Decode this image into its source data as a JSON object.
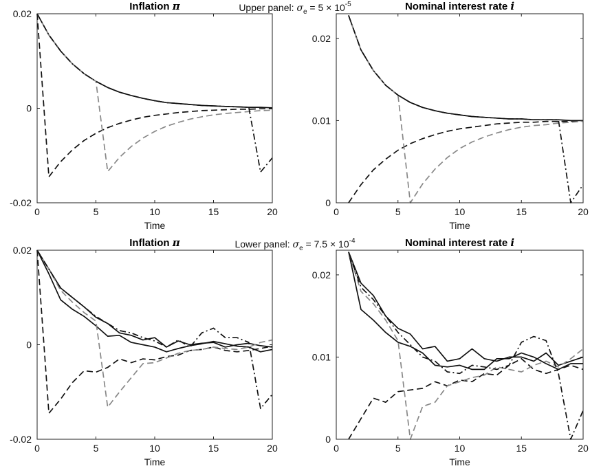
{
  "panel_labels": [
    {
      "prefix": "Upper panel: ",
      "sigma": "σ",
      "sub": "e",
      "eq": " = 5 × 10",
      "sup": "-5"
    },
    {
      "prefix": "Lower panel: ",
      "sigma": "σ",
      "sub": "e",
      "eq": " = 7.5 × 10",
      "sup": "-4"
    }
  ],
  "chart_data": [
    {
      "type": "line",
      "title": "Inflation π",
      "xlabel": "Time",
      "ylabel": "",
      "xlim": [
        0,
        20
      ],
      "ylim": [
        -0.02,
        0.02
      ],
      "xticks": [
        "0",
        "5",
        "10",
        "15",
        "20"
      ],
      "yticks": [
        {
          "v": 0.02,
          "label": "0.02"
        },
        {
          "v": 0,
          "label": "0"
        },
        {
          "v": -0.02,
          "label": "-0.02"
        }
      ],
      "series": [
        {
          "color": "#111111",
          "dash": "",
          "x": [
            0,
            1,
            2,
            3,
            4,
            5,
            6,
            7,
            8,
            9,
            10,
            11,
            12,
            13,
            14,
            15,
            16,
            17,
            18,
            19,
            20
          ],
          "values": [
            0.02,
            0.0155,
            0.0121,
            0.0094,
            0.0073,
            0.0057,
            0.0044,
            0.0034,
            0.0027,
            0.0021,
            0.0016,
            0.0012,
            0.001,
            0.0008,
            0.0006,
            0.0005,
            0.0004,
            0.0003,
            0.0002,
            0.0002,
            0.0001
          ]
        },
        {
          "color": "#111111",
          "dash": "9,5",
          "x": [
            0,
            1,
            2,
            3,
            4,
            5,
            6,
            7,
            8,
            9,
            10,
            11,
            12,
            13,
            14,
            15,
            16,
            17,
            18,
            19,
            20
          ],
          "values": [
            0.02,
            -0.0145,
            -0.0113,
            -0.0088,
            -0.0068,
            -0.0053,
            -0.0041,
            -0.0032,
            -0.0025,
            -0.0019,
            -0.0015,
            -0.0012,
            -0.0009,
            -0.0007,
            -0.0005,
            -0.0004,
            -0.0003,
            -0.0002,
            -0.0002,
            -0.0001,
            -0.0001
          ]
        },
        {
          "color": "#888888",
          "dash": "9,5",
          "x": [
            0,
            1,
            2,
            3,
            4,
            5,
            6,
            7,
            8,
            9,
            10,
            11,
            12,
            13,
            14,
            15,
            16,
            17,
            18,
            19,
            20
          ],
          "values": [
            0.02,
            0.0155,
            0.0121,
            0.0094,
            0.0073,
            0.0057,
            -0.0134,
            -0.0104,
            -0.0081,
            -0.0063,
            -0.0049,
            -0.0038,
            -0.003,
            -0.0023,
            -0.0018,
            -0.0014,
            -0.0011,
            -0.0009,
            -0.0007,
            -0.0005,
            -0.0004
          ]
        },
        {
          "color": "#111111",
          "dash": "9,4,2,4",
          "x": [
            0,
            1,
            2,
            3,
            4,
            5,
            6,
            7,
            8,
            9,
            10,
            11,
            12,
            13,
            14,
            15,
            16,
            17,
            18,
            19,
            20
          ],
          "values": [
            0.02,
            0.0155,
            0.0121,
            0.0094,
            0.0073,
            0.0057,
            0.0044,
            0.0034,
            0.0027,
            0.0021,
            0.0016,
            0.0012,
            0.001,
            0.0008,
            0.0006,
            0.0005,
            0.0004,
            0.0003,
            0.0002,
            -0.0135,
            -0.0105
          ]
        }
      ]
    },
    {
      "type": "line",
      "title": "Nominal interest rate i",
      "xlabel": "Time",
      "ylabel": "",
      "xlim": [
        0,
        20
      ],
      "ylim": [
        0,
        0.023
      ],
      "xticks": [
        "0",
        "5",
        "10",
        "15",
        "20"
      ],
      "yticks": [
        {
          "v": 0.02,
          "label": "0.02"
        },
        {
          "v": 0.01,
          "label": "0.01"
        },
        {
          "v": 0,
          "label": "0"
        }
      ],
      "series": [
        {
          "color": "#111111",
          "dash": "",
          "x": [
            1,
            2,
            3,
            4,
            5,
            6,
            7,
            8,
            9,
            10,
            11,
            12,
            13,
            14,
            15,
            16,
            17,
            18,
            19,
            20
          ],
          "values": [
            0.0228,
            0.0186,
            0.0161,
            0.0143,
            0.0131,
            0.0122,
            0.0116,
            0.0112,
            0.0109,
            0.0107,
            0.0105,
            0.0104,
            0.0103,
            0.0102,
            0.0102,
            0.0101,
            0.0101,
            0.0101,
            0.01,
            0.01
          ]
        },
        {
          "color": "#111111",
          "dash": "9,5",
          "x": [
            1,
            2,
            3,
            4,
            5,
            6,
            7,
            8,
            9,
            10,
            11,
            12,
            13,
            14,
            15,
            16,
            17,
            18,
            19,
            20
          ],
          "values": [
            0.0,
            0.0022,
            0.004,
            0.0053,
            0.0064,
            0.0072,
            0.0078,
            0.0083,
            0.0087,
            0.009,
            0.0092,
            0.0094,
            0.0096,
            0.0097,
            0.0098,
            0.0098,
            0.0099,
            0.0099,
            0.0099,
            0.01
          ]
        },
        {
          "color": "#888888",
          "dash": "9,5",
          "x": [
            1,
            2,
            3,
            4,
            5,
            6,
            7,
            8,
            9,
            10,
            11,
            12,
            13,
            14,
            15,
            16,
            17,
            18,
            19,
            20
          ],
          "values": [
            0.0228,
            0.0186,
            0.0161,
            0.0143,
            0.0131,
            0.0,
            0.0023,
            0.0041,
            0.0055,
            0.0066,
            0.0074,
            0.008,
            0.0085,
            0.0089,
            0.0092,
            0.0094,
            0.0095,
            0.0097,
            0.0098,
            0.0099
          ]
        },
        {
          "color": "#111111",
          "dash": "9,4,2,4",
          "x": [
            1,
            2,
            3,
            4,
            5,
            6,
            7,
            8,
            9,
            10,
            11,
            12,
            13,
            14,
            15,
            16,
            17,
            18,
            19,
            20
          ],
          "values": [
            0.0228,
            0.0186,
            0.0161,
            0.0143,
            0.0131,
            0.0122,
            0.0116,
            0.0112,
            0.0109,
            0.0107,
            0.0105,
            0.0104,
            0.0103,
            0.0102,
            0.0102,
            0.0101,
            0.0101,
            0.0101,
            0.0,
            0.0022
          ]
        }
      ]
    },
    {
      "type": "line",
      "title": "Inflation π",
      "xlabel": "Time",
      "ylabel": "",
      "xlim": [
        0,
        20
      ],
      "ylim": [
        -0.02,
        0.02
      ],
      "xticks": [
        "0",
        "5",
        "10",
        "15",
        "20"
      ],
      "yticks": [
        {
          "v": 0.02,
          "label": "0.02"
        },
        {
          "v": 0,
          "label": "0"
        },
        {
          "v": -0.02,
          "label": "-0.02"
        }
      ],
      "series": [
        {
          "color": "#111111",
          "dash": "",
          "x": [
            0,
            1,
            2,
            3,
            4,
            5,
            6,
            7,
            8,
            9,
            10,
            11,
            12,
            13,
            14,
            15,
            16,
            17,
            18,
            19,
            20
          ],
          "values": [
            0.02,
            0.016,
            0.012,
            0.01,
            0.008,
            0.0058,
            0.0045,
            0.0025,
            0.002,
            0.001,
            0.0015,
            -0.0005,
            0.0008,
            0.0,
            0.0003,
            0.0005,
            -0.0005,
            0.0,
            0.0003,
            -0.0002,
            -0.0005
          ]
        },
        {
          "color": "#111111",
          "dash": "",
          "x": [
            0,
            1,
            2,
            3,
            4,
            5,
            6,
            7,
            8,
            9,
            10,
            11,
            12,
            13,
            14,
            15,
            16,
            17,
            18,
            19,
            20
          ],
          "values": [
            0.02,
            0.015,
            0.0095,
            0.0075,
            0.006,
            0.004,
            0.0018,
            0.002,
            0.0005,
            0.0,
            -0.0005,
            -0.0015,
            -0.0008,
            -0.0002,
            0.0002,
            0.0007,
            0.0002,
            -0.0003,
            -0.0005,
            -0.0015,
            -0.001
          ]
        },
        {
          "color": "#111111",
          "dash": "9,5",
          "x": [
            0,
            1,
            2,
            3,
            4,
            5,
            6,
            7,
            8,
            9,
            10,
            11,
            12,
            13,
            14,
            15,
            16,
            17,
            18,
            19,
            20
          ],
          "values": [
            0.02,
            -0.0145,
            -0.0115,
            -0.008,
            -0.0055,
            -0.0058,
            -0.0048,
            -0.003,
            -0.0038,
            -0.003,
            -0.0032,
            -0.0025,
            -0.0022,
            -0.0012,
            -0.001,
            -0.0005,
            -0.0012,
            -0.0015,
            -0.0012,
            -0.0008,
            -0.0003
          ]
        },
        {
          "color": "#888888",
          "dash": "9,5",
          "x": [
            0,
            1,
            2,
            3,
            4,
            5,
            6,
            7,
            8,
            9,
            10,
            11,
            12,
            13,
            14,
            15,
            16,
            17,
            18,
            19,
            20
          ],
          "values": [
            0.02,
            0.016,
            0.0115,
            0.009,
            0.0068,
            0.005,
            -0.0132,
            -0.01,
            -0.007,
            -0.004,
            -0.0038,
            -0.0028,
            -0.0018,
            -0.0012,
            -0.001,
            -0.0005,
            -0.0008,
            -0.001,
            -0.0005,
            0.0005,
            0.001
          ]
        },
        {
          "color": "#111111",
          "dash": "9,4,2,4",
          "x": [
            0,
            1,
            2,
            3,
            4,
            5,
            6,
            7,
            8,
            9,
            10,
            11,
            12,
            13,
            14,
            15,
            16,
            17,
            18,
            19,
            20
          ],
          "values": [
            0.02,
            0.016,
            0.012,
            0.01,
            0.008,
            0.006,
            0.0045,
            0.003,
            0.0025,
            0.0015,
            0.0008,
            -0.0005,
            0.001,
            -0.0005,
            0.0025,
            0.0035,
            0.0015,
            0.0015,
            0.0005,
            -0.0135,
            -0.0105
          ]
        }
      ]
    },
    {
      "type": "line",
      "title": "Nominal interest rate i",
      "xlabel": "Time",
      "ylabel": "",
      "xlim": [
        0,
        20
      ],
      "ylim": [
        0,
        0.023
      ],
      "xticks": [
        "0",
        "5",
        "10",
        "15",
        "20"
      ],
      "yticks": [
        {
          "v": 0.02,
          "label": "0.02"
        },
        {
          "v": 0.01,
          "label": "0.01"
        },
        {
          "v": 0,
          "label": "0"
        }
      ],
      "series": [
        {
          "color": "#111111",
          "dash": "",
          "x": [
            1,
            2,
            3,
            4,
            5,
            6,
            7,
            8,
            9,
            10,
            11,
            12,
            13,
            14,
            15,
            16,
            17,
            18,
            19,
            20
          ],
          "values": [
            0.0228,
            0.019,
            0.0175,
            0.015,
            0.0135,
            0.0128,
            0.011,
            0.0113,
            0.0095,
            0.0098,
            0.011,
            0.0098,
            0.0095,
            0.01,
            0.01,
            0.0095,
            0.0105,
            0.009,
            0.0095,
            0.01
          ]
        },
        {
          "color": "#111111",
          "dash": "",
          "x": [
            1,
            2,
            3,
            4,
            5,
            6,
            7,
            8,
            9,
            10,
            11,
            12,
            13,
            14,
            15,
            16,
            17,
            18,
            19,
            20
          ],
          "values": [
            0.0228,
            0.0158,
            0.0145,
            0.013,
            0.0118,
            0.0113,
            0.0105,
            0.009,
            0.0088,
            0.009,
            0.0085,
            0.0085,
            0.0098,
            0.0098,
            0.0105,
            0.01,
            0.0092,
            0.0085,
            0.0092,
            0.0092
          ]
        },
        {
          "color": "#111111",
          "dash": "9,5",
          "x": [
            1,
            2,
            3,
            4,
            5,
            6,
            7,
            8,
            9,
            10,
            11,
            12,
            13,
            14,
            15,
            16,
            17,
            18,
            19,
            20
          ],
          "values": [
            0.0,
            0.0025,
            0.005,
            0.0045,
            0.0058,
            0.006,
            0.0062,
            0.007,
            0.0065,
            0.0072,
            0.007,
            0.008,
            0.0078,
            0.009,
            0.0098,
            0.0085,
            0.008,
            0.0085,
            0.009,
            0.0085
          ]
        },
        {
          "color": "#888888",
          "dash": "9,5",
          "x": [
            1,
            2,
            3,
            4,
            5,
            6,
            7,
            8,
            9,
            10,
            11,
            12,
            13,
            14,
            15,
            16,
            17,
            18,
            19,
            20
          ],
          "values": [
            0.0228,
            0.018,
            0.0165,
            0.0145,
            0.012,
            0.0,
            0.004,
            0.0045,
            0.0065,
            0.007,
            0.0075,
            0.0078,
            0.0088,
            0.0085,
            0.0082,
            0.009,
            0.0095,
            0.0088,
            0.0098,
            0.011
          ]
        },
        {
          "color": "#111111",
          "dash": "9,4,2,4",
          "x": [
            1,
            2,
            3,
            4,
            5,
            6,
            7,
            8,
            9,
            10,
            11,
            12,
            13,
            14,
            15,
            16,
            17,
            18,
            19,
            20
          ],
          "values": [
            0.0228,
            0.0185,
            0.017,
            0.015,
            0.013,
            0.0115,
            0.01,
            0.0095,
            0.0082,
            0.008,
            0.009,
            0.0088,
            0.0085,
            0.009,
            0.0118,
            0.0125,
            0.012,
            0.008,
            0.0,
            0.0035
          ]
        }
      ]
    }
  ]
}
